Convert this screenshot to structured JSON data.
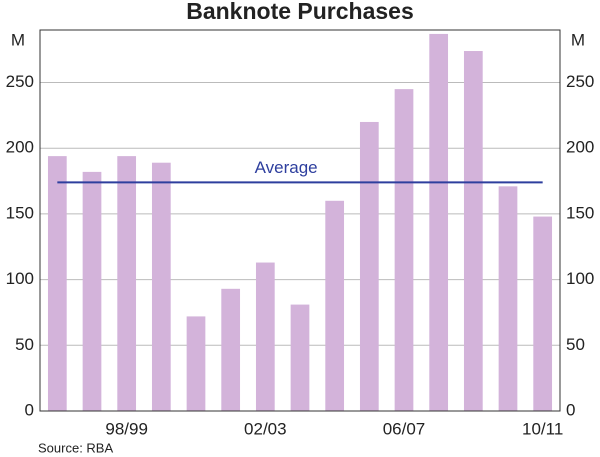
{
  "chart_data": {
    "type": "bar",
    "title": "Banknote Purchases",
    "categories": [
      null,
      null,
      "98/99",
      null,
      null,
      null,
      "02/03",
      null,
      null,
      null,
      "06/07",
      null,
      null,
      null,
      "10/11"
    ],
    "values": [
      194,
      182,
      194,
      189,
      72,
      93,
      113,
      81,
      160,
      220,
      245,
      287,
      274,
      171,
      148
    ],
    "color": "#d3b3da",
    "ylim": [
      0,
      290
    ],
    "yticks": [
      0,
      50,
      100,
      150,
      200,
      250
    ],
    "grid": true,
    "y_unit": "M",
    "average": {
      "label": "Average",
      "value": 174,
      "color": "#2e3f9e"
    },
    "source": "Source: RBA"
  }
}
